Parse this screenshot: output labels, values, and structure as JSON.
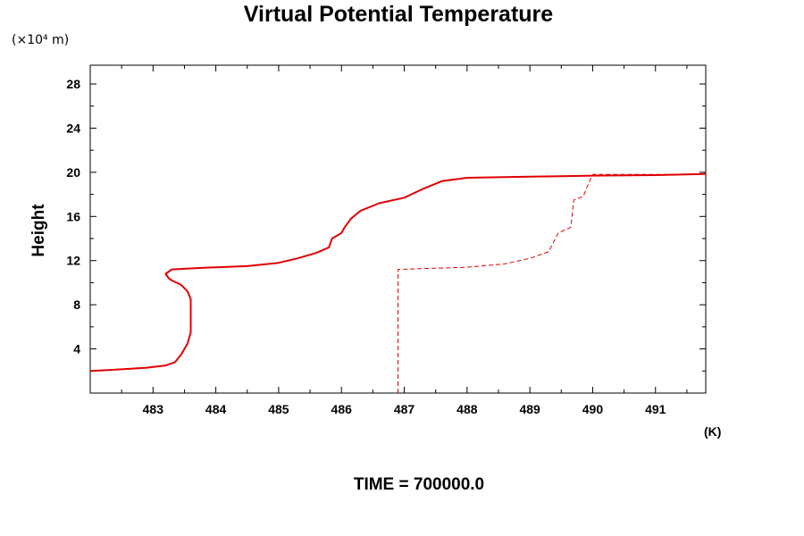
{
  "chart_data": {
    "type": "line",
    "title": "Virtual Potential Temperature",
    "y_units": "(×10⁴ m)",
    "ylabel": "Height",
    "x_units": "(K)",
    "footer": "TIME = 700000.0",
    "xlim": [
      482.0,
      491.8
    ],
    "ylim": [
      0.0,
      29.7
    ],
    "x_ticks": [
      483,
      484,
      485,
      486,
      487,
      488,
      489,
      490,
      491
    ],
    "y_ticks": [
      4,
      8,
      12,
      16,
      20,
      24,
      28
    ],
    "grid": false,
    "series": [
      {
        "style": "solid",
        "color": "#e00000",
        "points": [
          [
            482.0,
            2.0
          ],
          [
            482.5,
            2.15
          ],
          [
            482.9,
            2.3
          ],
          [
            483.2,
            2.5
          ],
          [
            483.35,
            2.8
          ],
          [
            483.45,
            3.5
          ],
          [
            483.55,
            4.5
          ],
          [
            483.6,
            5.5
          ],
          [
            483.6,
            7.0
          ],
          [
            483.6,
            8.5
          ],
          [
            483.55,
            9.2
          ],
          [
            483.45,
            9.8
          ],
          [
            483.3,
            10.2
          ],
          [
            483.25,
            10.4
          ],
          [
            483.2,
            10.8
          ],
          [
            483.3,
            11.2
          ],
          [
            483.8,
            11.35
          ],
          [
            484.5,
            11.5
          ],
          [
            485.0,
            11.8
          ],
          [
            485.3,
            12.2
          ],
          [
            485.6,
            12.7
          ],
          [
            485.8,
            13.2
          ],
          [
            485.85,
            14.0
          ],
          [
            486.0,
            14.5
          ],
          [
            486.05,
            15.0
          ],
          [
            486.15,
            15.8
          ],
          [
            486.3,
            16.5
          ],
          [
            486.6,
            17.2
          ],
          [
            487.0,
            17.7
          ],
          [
            487.3,
            18.5
          ],
          [
            487.6,
            19.2
          ],
          [
            488.0,
            19.5
          ],
          [
            489.0,
            19.6
          ],
          [
            490.0,
            19.7
          ],
          [
            491.0,
            19.75
          ],
          [
            491.8,
            19.85
          ]
        ]
      },
      {
        "style": "dashed",
        "color": "#e00000",
        "points": [
          [
            486.9,
            0.0
          ],
          [
            486.9,
            11.2
          ],
          [
            488.0,
            11.4
          ],
          [
            488.6,
            11.7
          ],
          [
            489.0,
            12.2
          ],
          [
            489.3,
            12.8
          ],
          [
            489.45,
            14.5
          ],
          [
            489.65,
            15.0
          ],
          [
            489.7,
            17.5
          ],
          [
            489.85,
            17.8
          ],
          [
            489.95,
            19.2
          ],
          [
            490.0,
            19.8
          ],
          [
            491.0,
            19.8
          ],
          [
            491.8,
            19.85
          ]
        ]
      }
    ]
  }
}
